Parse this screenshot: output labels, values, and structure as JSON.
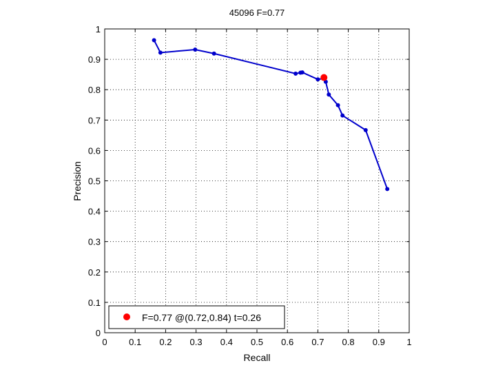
{
  "chart_data": {
    "type": "line",
    "title": "45096 F=0.77",
    "xlabel": "Recall",
    "ylabel": "Precision",
    "xlim": [
      0,
      1
    ],
    "ylim": [
      0,
      1
    ],
    "grid": true,
    "x_ticks": [
      "0",
      "0.1",
      "0.2",
      "0.3",
      "0.4",
      "0.5",
      "0.6",
      "0.7",
      "0.8",
      "0.9",
      "1"
    ],
    "y_ticks": [
      "0",
      "0.1",
      "0.2",
      "0.3",
      "0.4",
      "0.5",
      "0.6",
      "0.7",
      "0.8",
      "0.9",
      "1"
    ],
    "series": [
      {
        "color": "#0000cc",
        "points": [
          [
            0.162,
            0.963
          ],
          [
            0.183,
            0.922
          ],
          [
            0.297,
            0.932
          ],
          [
            0.359,
            0.919
          ],
          [
            0.627,
            0.853
          ],
          [
            0.643,
            0.856
          ],
          [
            0.649,
            0.857
          ],
          [
            0.7,
            0.834
          ],
          [
            0.722,
            0.837
          ],
          [
            0.726,
            0.826
          ],
          [
            0.736,
            0.784
          ],
          [
            0.766,
            0.749
          ],
          [
            0.781,
            0.715
          ],
          [
            0.857,
            0.667
          ],
          [
            0.928,
            0.473
          ]
        ]
      }
    ],
    "highlight": {
      "x": 0.72,
      "y": 0.84,
      "color": "#ff0000"
    },
    "legend": {
      "position": "bottom-left",
      "text": "F=0.77 @(0.72,0.84) t=0.26"
    }
  }
}
